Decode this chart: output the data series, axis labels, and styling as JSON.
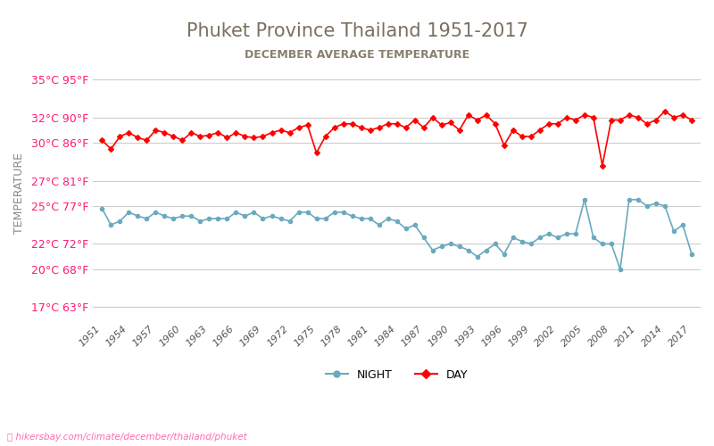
{
  "title": "Phuket Province Thailand 1951-2017",
  "subtitle": "DECEMBER AVERAGE TEMPERATURE",
  "ylabel": "TEMPERATURE",
  "watermark": "hikersbay.com/climate/december/thailand/phuket",
  "years": [
    1951,
    1952,
    1953,
    1954,
    1955,
    1956,
    1957,
    1958,
    1959,
    1960,
    1961,
    1962,
    1963,
    1964,
    1965,
    1966,
    1967,
    1968,
    1969,
    1970,
    1971,
    1972,
    1973,
    1974,
    1975,
    1976,
    1977,
    1978,
    1979,
    1980,
    1981,
    1982,
    1983,
    1984,
    1985,
    1986,
    1987,
    1988,
    1989,
    1990,
    1991,
    1992,
    1993,
    1994,
    1995,
    1996,
    1997,
    1998,
    1999,
    2000,
    2001,
    2002,
    2003,
    2004,
    2005,
    2006,
    2007,
    2008,
    2009,
    2010,
    2011,
    2012,
    2013,
    2014,
    2015,
    2016,
    2017
  ],
  "day_temps": [
    30.2,
    29.5,
    30.5,
    30.8,
    30.4,
    30.2,
    31.0,
    30.8,
    30.5,
    30.2,
    30.8,
    30.5,
    30.6,
    30.8,
    30.4,
    30.8,
    30.5,
    30.4,
    30.5,
    30.8,
    31.0,
    30.8,
    31.2,
    31.4,
    29.2,
    30.5,
    31.2,
    31.5,
    31.5,
    31.2,
    31.0,
    31.2,
    31.5,
    31.5,
    31.2,
    31.8,
    31.2,
    32.0,
    31.4,
    31.6,
    31.0,
    32.2,
    31.8,
    32.2,
    31.5,
    29.8,
    31.0,
    30.5,
    30.5,
    31.0,
    31.5,
    31.5,
    32.0,
    31.8,
    32.2,
    32.0,
    28.2,
    31.8,
    31.8,
    32.2,
    32.0,
    31.5,
    31.8,
    32.5,
    32.0,
    32.2,
    31.8
  ],
  "night_temps": [
    24.8,
    23.5,
    23.8,
    24.5,
    24.2,
    24.0,
    24.5,
    24.2,
    24.0,
    24.2,
    24.2,
    23.8,
    24.0,
    24.0,
    24.0,
    24.5,
    24.2,
    24.5,
    24.0,
    24.2,
    24.0,
    23.8,
    24.5,
    24.5,
    24.0,
    24.0,
    24.5,
    24.5,
    24.2,
    24.0,
    24.0,
    23.5,
    24.0,
    23.8,
    23.2,
    23.5,
    22.5,
    21.5,
    21.8,
    22.0,
    21.8,
    21.5,
    21.0,
    21.5,
    22.0,
    21.2,
    22.5,
    22.2,
    22.0,
    22.5,
    22.8,
    22.5,
    22.8,
    22.8,
    25.5,
    22.5,
    22.0,
    22.0,
    20.0,
    25.5,
    25.5,
    25.0,
    25.2,
    25.0,
    23.0,
    23.5,
    21.2
  ],
  "day_color": "#ff0000",
  "night_color": "#6aaabf",
  "title_color": "#7a7060",
  "subtitle_color": "#888070",
  "label_color_pink": "#ff1a75",
  "background_color": "#ffffff",
  "grid_color": "#cccccc",
  "yticks_c": [
    17,
    20,
    22,
    25,
    27,
    30,
    32,
    35
  ],
  "yticks_f": [
    63,
    68,
    72,
    77,
    81,
    86,
    90,
    95
  ],
  "ylim": [
    16,
    36
  ],
  "xtick_years": [
    1951,
    1954,
    1957,
    1960,
    1963,
    1966,
    1969,
    1972,
    1975,
    1978,
    1981,
    1984,
    1987,
    1990,
    1993,
    1996,
    1999,
    2002,
    2005,
    2008,
    2011,
    2014,
    2017
  ]
}
